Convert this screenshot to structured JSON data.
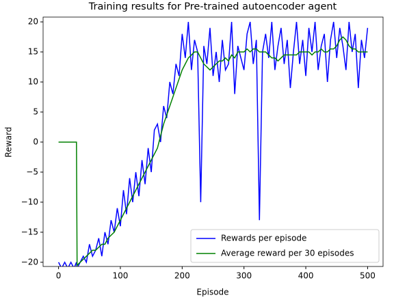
{
  "chart_data": {
    "type": "line",
    "title": "Training results for Pre-trained autoencoder agent",
    "xlabel": "Episode",
    "ylabel": "Reward",
    "x": [
      0,
      5,
      10,
      15,
      20,
      25,
      29,
      30,
      35,
      40,
      45,
      50,
      55,
      60,
      65,
      70,
      75,
      80,
      85,
      90,
      95,
      100,
      105,
      110,
      115,
      120,
      125,
      130,
      135,
      140,
      145,
      150,
      155,
      160,
      165,
      170,
      175,
      180,
      185,
      190,
      195,
      200,
      205,
      210,
      215,
      220,
      225,
      230,
      235,
      240,
      245,
      250,
      255,
      260,
      265,
      270,
      275,
      280,
      285,
      290,
      295,
      300,
      305,
      310,
      315,
      320,
      325,
      330,
      335,
      340,
      345,
      350,
      355,
      360,
      365,
      370,
      375,
      380,
      385,
      390,
      395,
      400,
      405,
      410,
      415,
      420,
      425,
      430,
      435,
      440,
      445,
      450,
      455,
      460,
      465,
      470,
      475,
      480,
      485,
      490,
      495,
      500
    ],
    "series": [
      {
        "name": "Rewards per episode",
        "color": "#0000ff",
        "values": [
          -20,
          -21,
          -20,
          -21,
          -20,
          -21,
          -20,
          -21,
          -20,
          -19,
          -20,
          -17,
          -19,
          -18,
          -16,
          -19,
          -15,
          -17,
          -13,
          -15,
          -11,
          -14,
          -8,
          -12,
          -6,
          -10,
          -5,
          -9,
          -3,
          -7,
          -1,
          -5,
          2,
          3,
          0,
          6,
          4,
          10,
          8,
          13,
          11,
          18,
          14,
          20,
          12,
          17,
          15,
          -10,
          16,
          13,
          19,
          11,
          15,
          10,
          17,
          12,
          13,
          20,
          8,
          16,
          14,
          12,
          18,
          20,
          13,
          17,
          -13,
          15,
          18,
          14,
          20,
          12,
          16,
          19,
          13,
          17,
          9,
          15,
          20,
          13,
          17,
          11,
          19,
          15,
          20,
          12,
          16,
          18,
          10,
          17,
          20,
          14,
          19,
          16,
          12,
          20,
          15,
          18,
          9,
          17,
          14,
          19
        ]
      },
      {
        "name": "Average reward per 30 episodes",
        "color": "#008000",
        "values": [
          0,
          0,
          0,
          0,
          0,
          0,
          0,
          -20.5,
          -20,
          -19.5,
          -19,
          -18.5,
          -18,
          -18,
          -17.5,
          -17,
          -17,
          -16,
          -15.5,
          -15,
          -14,
          -13,
          -12,
          -11,
          -10,
          -9,
          -8,
          -7,
          -6,
          -5,
          -4,
          -3,
          -2,
          -1,
          1,
          3,
          4.5,
          6,
          7.5,
          9,
          10.5,
          12,
          13,
          14,
          14.5,
          15,
          15,
          14,
          13,
          12.5,
          12,
          12.5,
          13,
          13.5,
          13.5,
          14,
          13.5,
          14.5,
          14,
          15,
          15,
          15,
          15.5,
          15,
          15.5,
          15.5,
          15,
          15,
          15,
          14.5,
          14,
          14,
          13.5,
          14,
          14.5,
          14.5,
          14.5,
          14.5,
          14.5,
          15,
          15,
          15,
          15,
          14.5,
          15,
          15,
          15.5,
          15,
          15,
          15.5,
          15.5,
          16,
          17,
          17.5,
          17,
          16,
          15.5,
          15.5,
          15,
          15,
          15,
          15
        ]
      }
    ],
    "xlim": [
      -25,
      525
    ],
    "xticks": [
      0,
      100,
      200,
      300,
      400,
      500
    ],
    "ylim": [
      -20.7,
      20.8
    ],
    "yticks": [
      {
        "value": -20,
        "label": "−20"
      },
      {
        "value": -15,
        "label": "−15"
      },
      {
        "value": -10,
        "label": "−10"
      },
      {
        "value": -5,
        "label": "−5"
      },
      0,
      5,
      10,
      15,
      20
    ],
    "legend": "lower right"
  }
}
